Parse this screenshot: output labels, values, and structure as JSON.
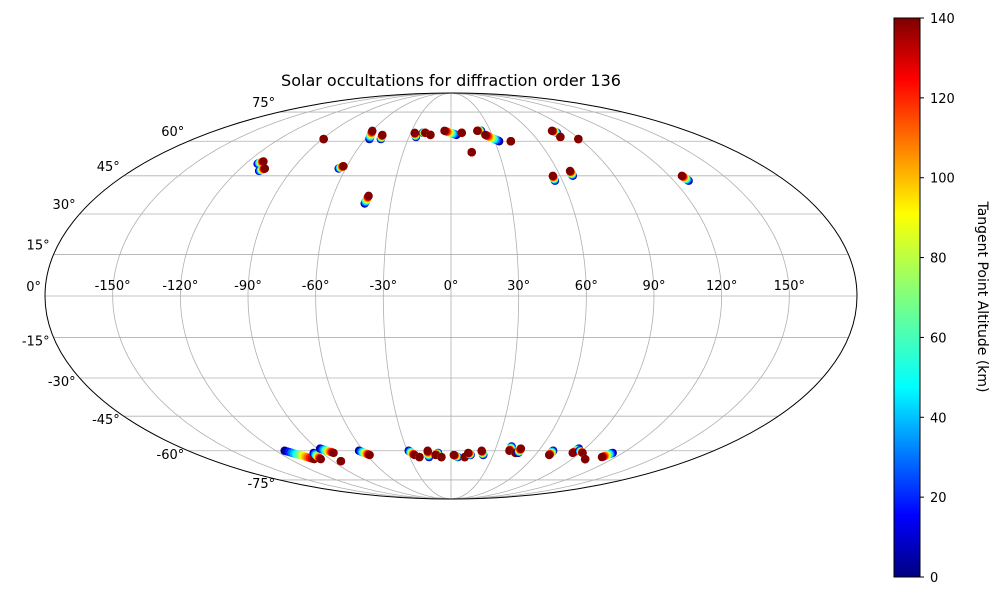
{
  "chart_data": {
    "type": "scatter",
    "projection": "mollweide",
    "title": "Solar occultations for diffraction order 136",
    "xlabel": "",
    "ylabel": "",
    "lon_ticks": [
      -150,
      -120,
      -90,
      -60,
      -30,
      0,
      30,
      60,
      90,
      120,
      150
    ],
    "lon_tick_labels": [
      "-150°",
      "-120°",
      "-90°",
      "-60°",
      "-30°",
      "0°",
      "30°",
      "60°",
      "90°",
      "120°",
      "150°"
    ],
    "lat_ticks": [
      -75,
      -60,
      -45,
      -30,
      -15,
      0,
      15,
      30,
      45,
      60,
      75
    ],
    "lat_tick_labels": [
      "-75°",
      "-60°",
      "-45°",
      "-30°",
      "-15°",
      "0°",
      "15°",
      "30°",
      "45°",
      "60°",
      "75°"
    ],
    "grid": true,
    "colorbar": {
      "label": "Tangent Point Altitude (km)",
      "range": [
        0,
        140
      ],
      "ticks": [
        0,
        20,
        40,
        60,
        80,
        100,
        120,
        140
      ],
      "tick_labels": [
        "0",
        "20",
        "40",
        "60",
        "80",
        "100",
        "120",
        "140"
      ],
      "colormap": "jet"
    },
    "occultations": [
      {
        "lon_start": -113,
        "lat_start": 50,
        "lon_end": -111,
        "lat_end": 51
      },
      {
        "lon_start": -108,
        "lat_start": 47,
        "lon_end": -106,
        "lat_end": 48
      },
      {
        "lon_start": -89,
        "lat_start": 61,
        "lon_end": -89,
        "lat_end": 61
      },
      {
        "lon_start": -64,
        "lat_start": 48,
        "lon_end": -62,
        "lat_end": 49
      },
      {
        "lon_start": -57,
        "lat_start": 61,
        "lon_end": -60,
        "lat_end": 65
      },
      {
        "lon_start": -49,
        "lat_start": 61,
        "lon_end": -50,
        "lat_end": 63
      },
      {
        "lon_start": -43,
        "lat_start": 34,
        "lon_end": -42,
        "lat_end": 37
      },
      {
        "lon_start": -25,
        "lat_start": 62,
        "lon_end": -27,
        "lat_end": 64
      },
      {
        "lon_start": -21,
        "lat_start": 64,
        "lon_end": -19,
        "lat_end": 64
      },
      {
        "lon_start": -15,
        "lat_start": 63,
        "lon_end": -15,
        "lat_end": 63
      },
      {
        "lon_start": 4,
        "lat_start": 63,
        "lon_end": -5,
        "lat_end": 65
      },
      {
        "lon_start": 8,
        "lat_start": 64,
        "lon_end": 8,
        "lat_end": 64
      },
      {
        "lon_start": 13,
        "lat_start": 55,
        "lon_end": 13,
        "lat_end": 55
      },
      {
        "lon_start": 23,
        "lat_start": 65,
        "lon_end": 20,
        "lat_end": 65
      },
      {
        "lon_start": 33,
        "lat_start": 60,
        "lon_end": 25,
        "lat_end": 63
      },
      {
        "lon_start": 41,
        "lat_start": 60,
        "lon_end": 41,
        "lat_end": 60
      },
      {
        "lon_start": 56,
        "lat_start": 43,
        "lon_end": 56,
        "lat_end": 45
      },
      {
        "lon_start": 67,
        "lat_start": 45,
        "lon_end": 67,
        "lat_end": 47
      },
      {
        "lon_start": 79,
        "lat_start": 64,
        "lon_end": 77,
        "lat_end": 65
      },
      {
        "lon_start": 78,
        "lat_start": 62,
        "lon_end": 78,
        "lat_end": 62
      },
      {
        "lon_start": 89,
        "lat_start": 61,
        "lon_end": 89,
        "lat_end": 61
      },
      {
        "lon_start": 128,
        "lat_start": 43,
        "lon_end": 127,
        "lat_end": 45
      },
      {
        "lon_start": -114,
        "lat_start": -60,
        "lon_end": -102,
        "lat_end": -64
      },
      {
        "lon_start": -96,
        "lat_start": -61,
        "lon_end": -97,
        "lat_end": -64
      },
      {
        "lon_start": -88,
        "lat_start": -59,
        "lon_end": -82,
        "lat_end": -61
      },
      {
        "lon_start": -84,
        "lat_start": -65,
        "lon_end": -84,
        "lat_end": -65
      },
      {
        "lon_start": -63,
        "lat_start": -60,
        "lon_end": -58,
        "lat_end": -62
      },
      {
        "lon_start": -29,
        "lat_start": -60,
        "lon_end": -26,
        "lat_end": -62
      },
      {
        "lon_start": -23,
        "lat_start": -63,
        "lon_end": -23,
        "lat_end": -63
      },
      {
        "lon_start": -16,
        "lat_start": -63,
        "lon_end": -16,
        "lat_end": -60
      },
      {
        "lon_start": -9,
        "lat_start": -61,
        "lon_end": -11,
        "lat_end": -62
      },
      {
        "lon_start": -7,
        "lat_start": -63,
        "lon_end": -7,
        "lat_end": -63
      },
      {
        "lon_start": 5,
        "lat_start": -63,
        "lon_end": 2,
        "lat_end": -62
      },
      {
        "lon_start": 10,
        "lat_start": -63,
        "lon_end": 10,
        "lat_end": -63
      },
      {
        "lon_start": 14,
        "lat_start": -62,
        "lon_end": 12,
        "lat_end": -61
      },
      {
        "lon_start": 23,
        "lat_start": -62,
        "lon_end": 21,
        "lat_end": -60
      },
      {
        "lon_start": 40,
        "lat_start": -58,
        "lon_end": 40,
        "lat_end": -60
      },
      {
        "lon_start": 45,
        "lat_start": -61,
        "lon_end": 45,
        "lat_end": -61
      },
      {
        "lon_start": 47,
        "lat_start": -61,
        "lon_end": 47,
        "lat_end": -59
      },
      {
        "lon_start": 70,
        "lat_start": -60,
        "lon_end": 70,
        "lat_end": -62
      },
      {
        "lon_start": 86,
        "lat_start": -59,
        "lon_end": 85,
        "lat_end": -61
      },
      {
        "lon_start": 88,
        "lat_start": -60,
        "lon_end": 92,
        "lat_end": -61
      },
      {
        "lon_start": 100,
        "lat_start": -64,
        "lon_end": 100,
        "lat_end": -64
      },
      {
        "lon_start": 113,
        "lat_start": -61,
        "lon_end": 110,
        "lat_end": -63
      }
    ]
  }
}
